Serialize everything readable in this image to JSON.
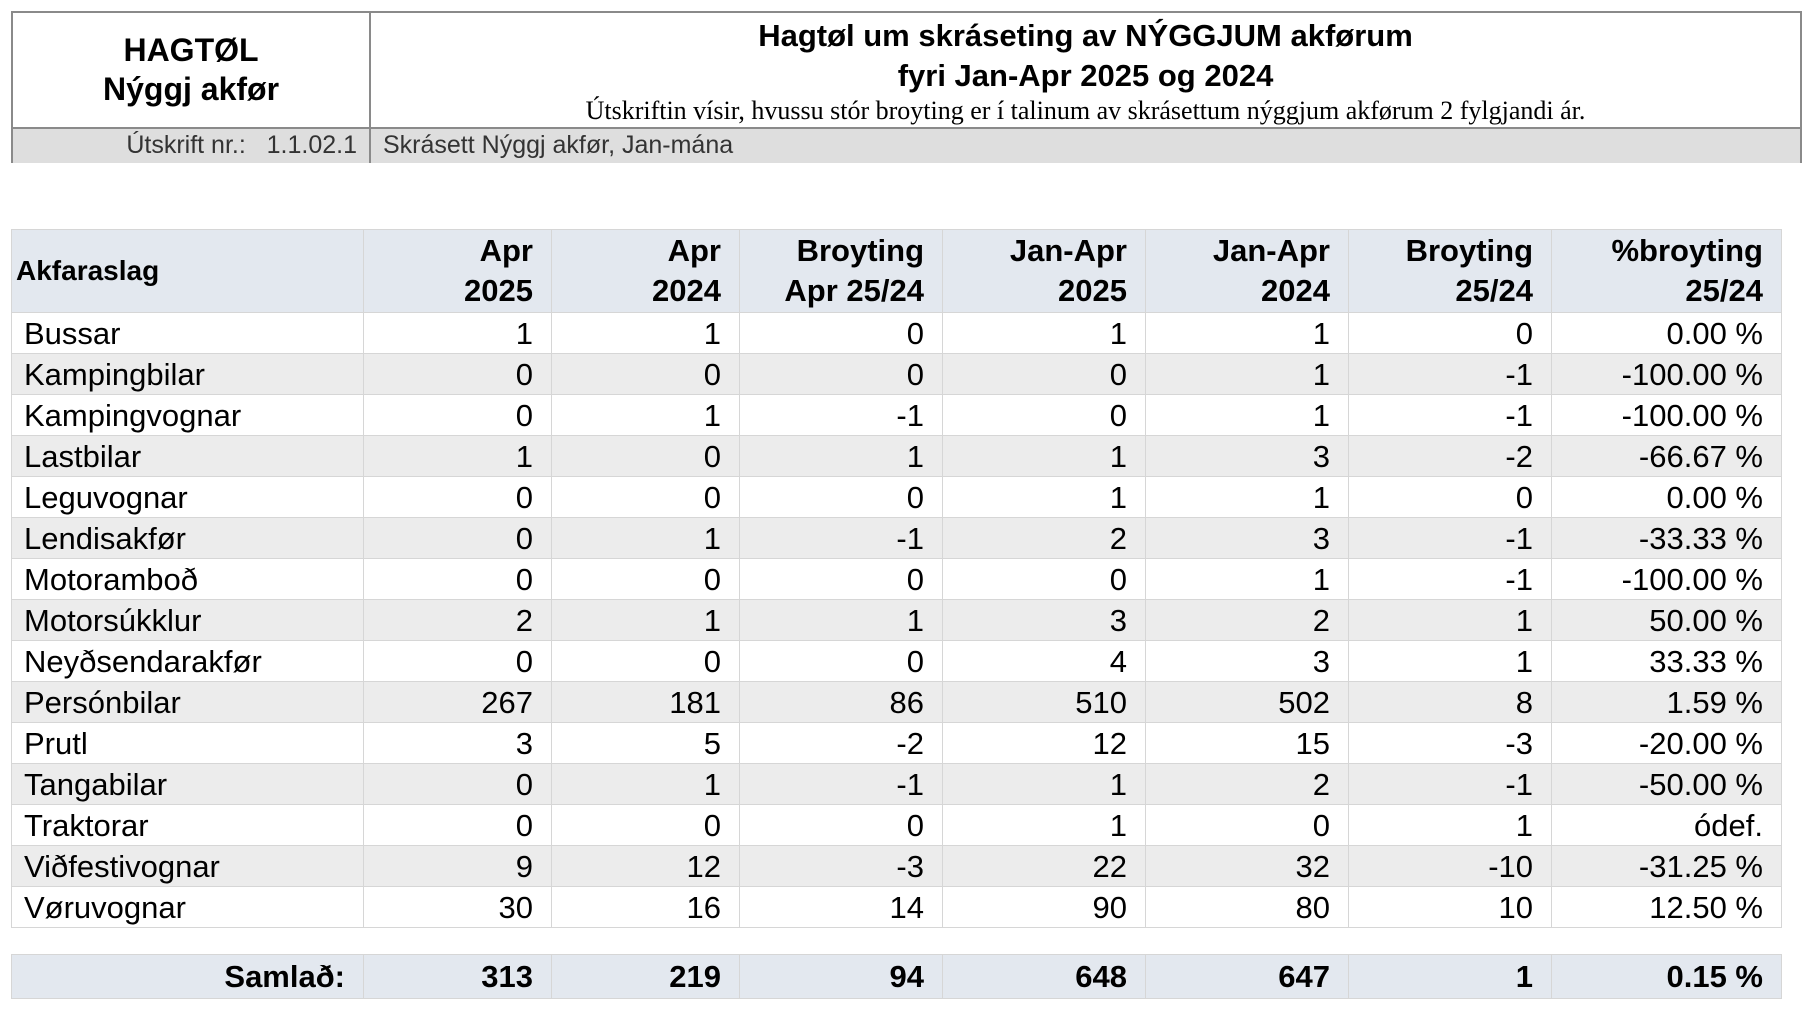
{
  "header": {
    "left_line1": "HAGTØL",
    "left_line2": "Nýggj akfør",
    "title_line1": "Hagtøl um skráseting av NÝGGJUM akførum",
    "title_line2": "fyri Jan-Apr 2025 og 2024",
    "description": "Útskriftin vísir, hvussu stór broyting er í talinum av skrásettum nýggjum akførum 2 fylgjandi ár.",
    "report_ref": "Útskrift nr.:   1.1.02.1",
    "subtitle": "Skrásett Nýggj akfør, Jan-mána"
  },
  "table": {
    "columns": [
      {
        "l1": "Akfaraslag",
        "l2": ""
      },
      {
        "l1": "Apr",
        "l2": "2025"
      },
      {
        "l1": "Apr",
        "l2": "2024"
      },
      {
        "l1": "Broyting",
        "l2": "Apr 25/24"
      },
      {
        "l1": "Jan-Apr",
        "l2": "2025"
      },
      {
        "l1": "Jan-Apr",
        "l2": "2024"
      },
      {
        "l1": "Broyting",
        "l2": "25/24"
      },
      {
        "l1": "%broyting",
        "l2": "25/24"
      }
    ],
    "rows": [
      [
        "Bussar",
        "1",
        "1",
        "0",
        "1",
        "1",
        "0",
        "0.00 %"
      ],
      [
        "Kampingbilar",
        "0",
        "0",
        "0",
        "0",
        "1",
        "-1",
        "-100.00 %"
      ],
      [
        "Kampingvognar",
        "0",
        "1",
        "-1",
        "0",
        "1",
        "-1",
        "-100.00 %"
      ],
      [
        "Lastbilar",
        "1",
        "0",
        "1",
        "1",
        "3",
        "-2",
        "-66.67 %"
      ],
      [
        "Leguvognar",
        "0",
        "0",
        "0",
        "1",
        "1",
        "0",
        "0.00 %"
      ],
      [
        "Lendisakfør",
        "0",
        "1",
        "-1",
        "2",
        "3",
        "-1",
        "-33.33 %"
      ],
      [
        "Motoramboð",
        "0",
        "0",
        "0",
        "0",
        "1",
        "-1",
        "-100.00 %"
      ],
      [
        "Motorsúkklur",
        "2",
        "1",
        "1",
        "3",
        "2",
        "1",
        "50.00 %"
      ],
      [
        "Neyðsendarakfør",
        "0",
        "0",
        "0",
        "4",
        "3",
        "1",
        "33.33 %"
      ],
      [
        "Persónbilar",
        "267",
        "181",
        "86",
        "510",
        "502",
        "8",
        "1.59 %"
      ],
      [
        "Prutl",
        "3",
        "5",
        "-2",
        "12",
        "15",
        "-3",
        "-20.00 %"
      ],
      [
        "Tangabilar",
        "0",
        "1",
        "-1",
        "1",
        "2",
        "-1",
        "-50.00 %"
      ],
      [
        "Traktorar",
        "0",
        "0",
        "0",
        "1",
        "0",
        "1",
        "ódef."
      ],
      [
        "Viðfestivognar",
        "9",
        "12",
        "-3",
        "22",
        "32",
        "-10",
        "-31.25 %"
      ],
      [
        "Vøruvognar",
        "30",
        "16",
        "14",
        "90",
        "80",
        "10",
        "12.50 %"
      ]
    ],
    "total": [
      "Samlað:",
      "313",
      "219",
      "94",
      "648",
      "647",
      "1",
      "0.15 %"
    ]
  }
}
